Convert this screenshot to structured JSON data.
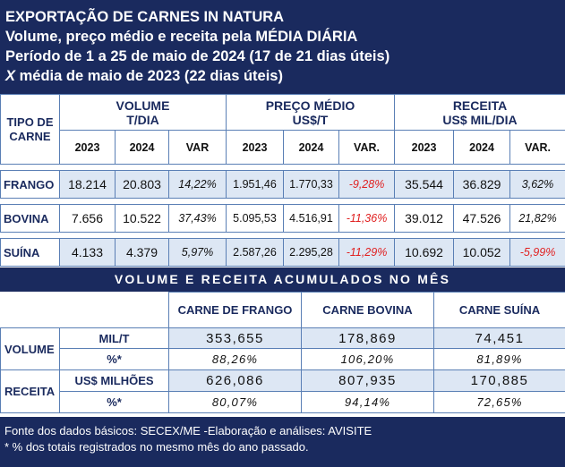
{
  "header": {
    "line1": "EXPORTAÇÃO DE CARNES IN NATURA",
    "line2": "Volume, preço médio e receita pela MÉDIA DIÁRIA",
    "line3": "Período de 1 a 25 de maio de 2024 (17 de 21 dias úteis)",
    "line4_symbol": "X",
    "line4_rest": " média de maio de 2023 (22 dias úteis)"
  },
  "table1": {
    "tipo_label": "TIPO DE CARNE",
    "groups": [
      {
        "line1": "VOLUME",
        "line2": "T/DIA"
      },
      {
        "line1": "PREÇO MÉDIO",
        "line2": "US$/T"
      },
      {
        "line1": "RECEITA",
        "line2": "US$ MIL/DIA"
      }
    ],
    "sub": [
      "2023",
      "2024",
      "VAR",
      "2023",
      "2024",
      "VAR.",
      "2023",
      "2024",
      "VAR."
    ],
    "rows": [
      {
        "label": "FRANGO",
        "vol2023": "18.214",
        "vol2024": "20.803",
        "volvar": "14,22%",
        "pm2023": "1.951,46",
        "pm2024": "1.770,33",
        "pmvar": "-9,28%",
        "rec2023": "35.544",
        "rec2024": "36.829",
        "recvar": "3,62%"
      },
      {
        "label": "BOVINA",
        "vol2023": "7.656",
        "vol2024": "10.522",
        "volvar": "37,43%",
        "pm2023": "5.095,53",
        "pm2024": "4.516,91",
        "pmvar": "-11,36%",
        "rec2023": "39.012",
        "rec2024": "47.526",
        "recvar": "21,82%"
      },
      {
        "label": "SUÍNA",
        "vol2023": "4.133",
        "vol2024": "4.379",
        "volvar": "5,97%",
        "pm2023": "2.587,26",
        "pm2024": "2.295,28",
        "pmvar": "-11,29%",
        "rec2023": "10.692",
        "rec2024": "10.052",
        "recvar": "-5,99%"
      }
    ]
  },
  "band_title": "VOLUME E RECEITA ACUMULADOS NO MÊS",
  "table2": {
    "cols": [
      "CARNE DE FRANGO",
      "CARNE BOVINA",
      "CARNE SUÍNA"
    ],
    "volume": {
      "label": "VOLUME",
      "unit": "MIL/T",
      "values": [
        "353,655",
        "178,869",
        "74,451"
      ],
      "pct_label": "%*",
      "pcts": [
        "88,26%",
        "106,20%",
        "81,89%"
      ]
    },
    "receita": {
      "label": "RECEITA",
      "unit": "US$ MILHÕES",
      "values": [
        "626,086",
        "807,935",
        "170,885"
      ],
      "pct_label": "%*",
      "pcts": [
        "80,07%",
        "94,14%",
        "72,65%"
      ]
    }
  },
  "footer": {
    "line1": "Fonte dos dados básicos: SECEX/ME -Elaboração e análises: AVISITE",
    "line2": "*  % dos totais registrados no mesmo mês do ano passado."
  }
}
